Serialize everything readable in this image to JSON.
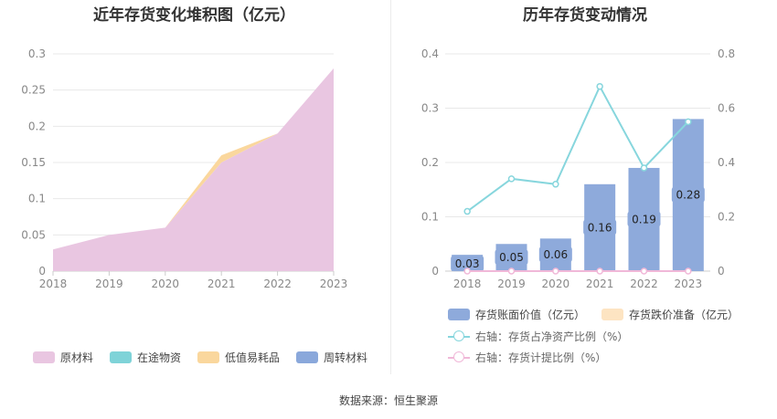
{
  "source": "数据来源：恒生聚源",
  "colors": {
    "raw": "#e9c6e1",
    "transit": "#7fd3d8",
    "consumables": "#fad79d",
    "turnover": "#8aa8db",
    "bar": "#8eaadb",
    "reserve": "#fde4c2",
    "ratio_line": "#87d6dd",
    "provision_line": "#f0b8d8",
    "grid": "#e8e8e8",
    "axis_text": "#888888"
  },
  "chart_data": [
    {
      "type": "area",
      "title": "近年存货变化堆积图（亿元）",
      "categories": [
        "2018",
        "2019",
        "2020",
        "2021",
        "2022",
        "2023"
      ],
      "ylim": [
        0,
        0.3
      ],
      "yticks": [
        "0",
        "0.05",
        "0.1",
        "0.15",
        "0.2",
        "0.25",
        "0.3"
      ],
      "stacked": true,
      "legend_position": "bottom",
      "series": [
        {
          "name": "原材料",
          "values": [
            0.03,
            0.05,
            0.06,
            0.15,
            0.19,
            0.28
          ]
        },
        {
          "name": "在途物资",
          "values": [
            0,
            0,
            0,
            0,
            0,
            0
          ]
        },
        {
          "name": "低值易耗品",
          "values": [
            0,
            0,
            0,
            0.01,
            0,
            0
          ]
        },
        {
          "name": "周转材料",
          "values": [
            0,
            0,
            0,
            0,
            0,
            0
          ]
        }
      ]
    },
    {
      "type": "bar",
      "title": "历年存货变动情况",
      "categories": [
        "2018",
        "2019",
        "2020",
        "2021",
        "2022",
        "2023"
      ],
      "ylim": [
        0,
        0.4
      ],
      "yticks": [
        "0",
        "0.1",
        "0.2",
        "0.3",
        "0.4"
      ],
      "y2lim": [
        0,
        0.8
      ],
      "y2ticks": [
        "0",
        "0.2",
        "0.4",
        "0.6",
        "0.8"
      ],
      "legend_position": "bottom",
      "series": [
        {
          "name": "存货账面价值（亿元）",
          "type": "bar",
          "axis": "left",
          "values": [
            0.03,
            0.05,
            0.06,
            0.16,
            0.19,
            0.28
          ],
          "labels": [
            "0.03",
            "0.05",
            "0.06",
            "0.16",
            "0.19",
            "0.28"
          ]
        },
        {
          "name": "存货跌价准备（亿元）",
          "type": "bar",
          "axis": "left",
          "values": [
            0,
            0,
            0,
            0,
            0,
            0
          ]
        },
        {
          "name": "右轴：存货占净资产比例（%）",
          "type": "line",
          "axis": "right",
          "values": [
            0.22,
            0.34,
            0.32,
            0.68,
            0.38,
            0.55
          ]
        },
        {
          "name": "右轴：存货计提比例（%）",
          "type": "line",
          "axis": "right",
          "values": [
            0,
            0,
            0,
            0,
            0,
            0
          ]
        }
      ]
    }
  ]
}
